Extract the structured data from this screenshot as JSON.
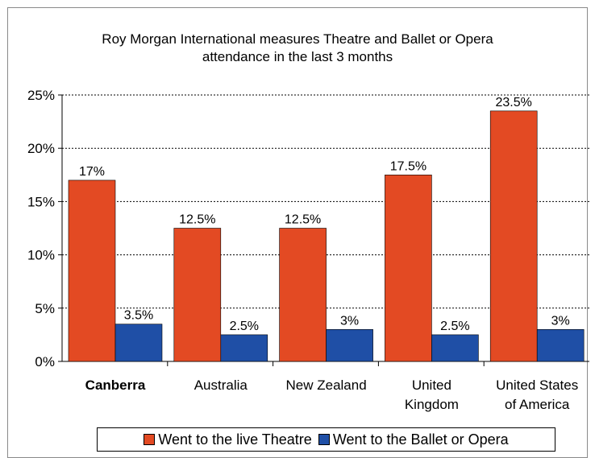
{
  "chart_data": {
    "type": "bar",
    "title": "Roy Morgan International measures Theatre and Ballet or Opera\nattendance in the last 3 months",
    "categories": [
      "Canberra",
      "Australia",
      "New Zealand",
      "United\nKingdom",
      "United States\nof America"
    ],
    "series": [
      {
        "name": "Went to the live Theatre",
        "color": "#e34a23",
        "values": [
          17,
          12.5,
          12.5,
          17.5,
          23.5
        ],
        "labels": [
          "17%",
          "12.5%",
          "12.5%",
          "17.5%",
          "23.5%"
        ]
      },
      {
        "name": "Went to the Ballet or Opera",
        "color": "#1f4fa6",
        "values": [
          3.5,
          2.5,
          3,
          2.5,
          3
        ],
        "labels": [
          "3.5%",
          "2.5%",
          "3%",
          "2.5%",
          "3%"
        ]
      }
    ],
    "ylim": [
      0,
      25
    ],
    "yticks": [
      "0%",
      "5%",
      "10%",
      "15%",
      "20%",
      "25%"
    ],
    "grid": true,
    "legend_position": "bottom"
  }
}
